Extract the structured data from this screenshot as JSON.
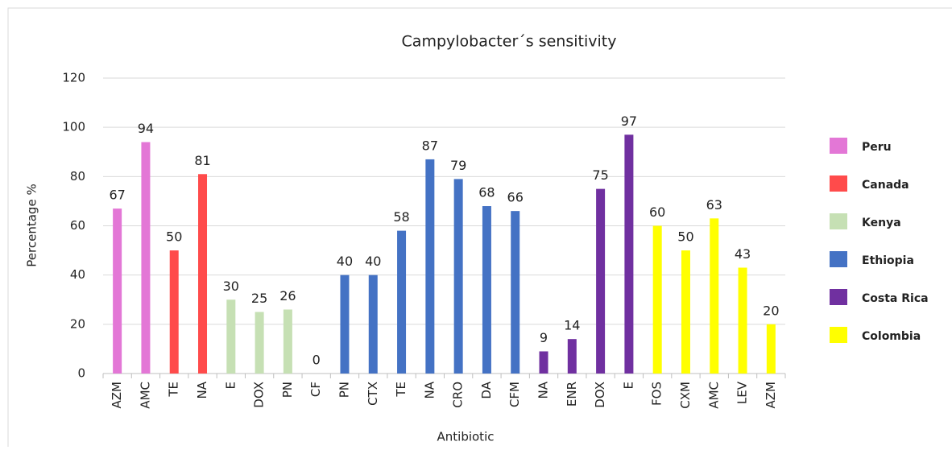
{
  "chart_data": {
    "type": "bar",
    "title": "Campylobacter´s sensitivity",
    "x_label": "Antibiotic",
    "y_label": "Percentage %",
    "categories": [
      "AZM",
      "AMC",
      "TE",
      "NA",
      "E",
      "DOX",
      "PN",
      "CF",
      "PN",
      "CTX",
      "TE",
      "NA",
      "CRO",
      "DA",
      "CFM",
      "NA",
      "ENR",
      "DOX",
      "E",
      "FOS",
      "CXM",
      "AMC",
      "LEV",
      "AZM"
    ],
    "series": [
      {
        "name": "Peru",
        "color": "#e377d6",
        "values": [
          67,
          94,
          null,
          null,
          null,
          null,
          null,
          null,
          null,
          null,
          null,
          null,
          null,
          null,
          null,
          null,
          null,
          null,
          null,
          null,
          null,
          null,
          null,
          null
        ]
      },
      {
        "name": "Canada",
        "color": "#ff4b4b",
        "values": [
          null,
          null,
          50,
          81,
          null,
          null,
          null,
          null,
          null,
          null,
          null,
          null,
          null,
          null,
          null,
          null,
          null,
          null,
          null,
          null,
          null,
          null,
          null,
          null
        ]
      },
      {
        "name": "Kenya",
        "color": "#c6e0b4",
        "values": [
          null,
          null,
          null,
          null,
          30,
          25,
          26,
          null,
          null,
          null,
          null,
          null,
          null,
          null,
          null,
          null,
          null,
          null,
          null,
          null,
          null,
          null,
          null,
          null
        ]
      },
      {
        "name": "Ethiopia",
        "color": "#4472c4",
        "values": [
          null,
          null,
          null,
          null,
          null,
          null,
          null,
          0,
          40,
          40,
          58,
          87,
          79,
          68,
          66,
          null,
          null,
          null,
          null,
          null,
          null,
          null,
          null,
          null
        ]
      },
      {
        "name": "Costa Rica",
        "color": "#7030a0",
        "values": [
          null,
          null,
          null,
          null,
          null,
          null,
          null,
          null,
          null,
          null,
          null,
          null,
          null,
          null,
          null,
          9,
          14,
          75,
          97,
          null,
          null,
          null,
          null,
          null
        ]
      },
      {
        "name": "Colombia",
        "color": "#ffff00",
        "values": [
          null,
          null,
          null,
          null,
          null,
          null,
          null,
          null,
          null,
          null,
          null,
          null,
          null,
          null,
          null,
          null,
          null,
          null,
          null,
          60,
          50,
          63,
          43,
          20
        ]
      }
    ],
    "ylim": [
      0,
      120
    ],
    "yticks": [
      0,
      20,
      40,
      60,
      80,
      100,
      120
    ],
    "grid": true,
    "legend": "right"
  }
}
